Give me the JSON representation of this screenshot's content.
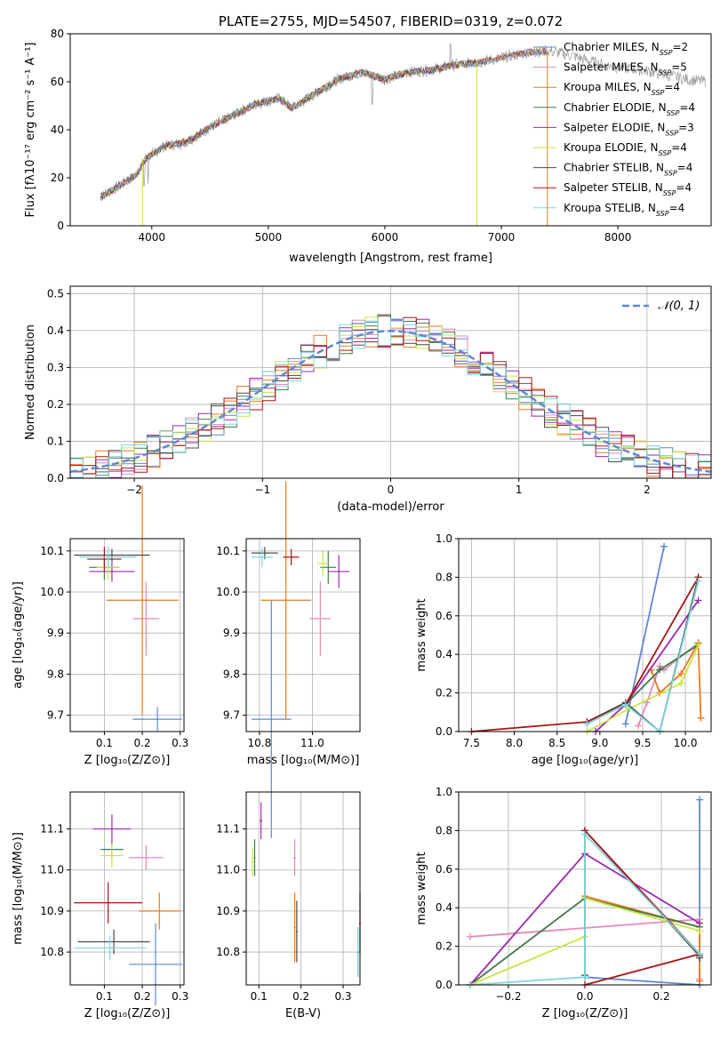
{
  "colors": {
    "Chabrier MILES": "#5f87d2",
    "Salpeter MILES": "#e589b8",
    "Kroupa MILES": "#ea7a20",
    "Chabrier ELODIE": "#3e7a4a",
    "Salpeter ELODIE": "#9a2aac",
    "Kroupa ELODIE": "#c8e642",
    "Chabrier STELIB": "#4a4a4a",
    "Salpeter STELIB": "#a81414",
    "Kroupa STELIB": "#7fd6dc"
  },
  "chart_data": [
    {
      "type": "line",
      "id": "spectrum",
      "title": "PLATE=2755, MJD=54507, FIBERID=0319, z=0.072",
      "xlabel": "wavelength [Angstrom, rest frame]",
      "ylabel": "Flux [fλ10⁻¹⁷ erg cm⁻² s⁻¹ A⁻¹]",
      "xlim": [
        3300,
        8800
      ],
      "ylim": [
        0,
        80
      ],
      "xticks": [
        "4000",
        "5000",
        "6000",
        "7000",
        "8000"
      ],
      "yticks": [
        "0",
        "20",
        "40",
        "60",
        "80"
      ],
      "legend_position": "right",
      "legend": [
        {
          "name": "Chabrier MILES",
          "label": "Chabrier MILES, N_SSP=2"
        },
        {
          "name": "Salpeter MILES",
          "label": "Salpeter MILES, N_SSP=5"
        },
        {
          "name": "Kroupa MILES",
          "label": "Kroupa MILES, N_SSP=4"
        },
        {
          "name": "Chabrier ELODIE",
          "label": "Chabrier ELODIE, N_SSP=4"
        },
        {
          "name": "Salpeter ELODIE",
          "label": "Salpeter ELODIE, N_SSP=3"
        },
        {
          "name": "Kroupa ELODIE",
          "label": "Kroupa ELODIE, N_SSP=4"
        },
        {
          "name": "Chabrier STELIB",
          "label": "Chabrier STELIB, N_SSP=4"
        },
        {
          "name": "Salpeter STELIB",
          "label": "Salpeter STELIB, N_SSP=4"
        },
        {
          "name": "Kroupa STELIB",
          "label": "Kroupa STELIB, N_SSP=4"
        }
      ],
      "continuum": {
        "x": [
          3560,
          3700,
          3860,
          3950,
          4100,
          4300,
          4500,
          4700,
          4900,
          5100,
          5200,
          5400,
          5600,
          5800,
          6000,
          6200,
          6400,
          6600,
          6800,
          7000,
          7200,
          7400,
          7600,
          7800,
          8000,
          8200,
          8400,
          8600,
          8750
        ],
        "flux": [
          12,
          16,
          21,
          28,
          33,
          35,
          41,
          46,
          51,
          53,
          49,
          55,
          61,
          64,
          61,
          64,
          65,
          67,
          68,
          70,
          72,
          73,
          71,
          68,
          66,
          65,
          63,
          61,
          60
        ]
      }
    },
    {
      "type": "histogram",
      "id": "residuals",
      "title": "",
      "xlabel": "(data-model)/error",
      "ylabel": "Normed distribution",
      "xlim": [
        -2.5,
        2.5
      ],
      "ylim": [
        0,
        0.52
      ],
      "xticks": [
        "−2",
        "−1",
        "0",
        "1",
        "2"
      ],
      "yticks": [
        "0.0",
        "0.1",
        "0.2",
        "0.3",
        "0.4",
        "0.5"
      ],
      "bin_width": 0.1,
      "legend_label": "𝒩(0, 1)",
      "reference": {
        "name": "normal",
        "mean": 0,
        "sigma": 1
      },
      "grid": true
    },
    {
      "type": "errorbar",
      "id": "age-vs-z",
      "xlabel": "Z [log₁₀(Z/Z⊙)]",
      "ylabel": "age  [log₁₀(age/yr)]",
      "xlim": [
        0.01,
        0.31
      ],
      "ylim": [
        9.66,
        10.13
      ],
      "xticks": [
        "0.1",
        "0.2",
        "0.3"
      ],
      "yticks": [
        "9.7",
        "9.8",
        "9.9",
        "10.0",
        "10.1"
      ],
      "points": [
        {
          "series": "Chabrier MILES",
          "x": 0.24,
          "xerr": 0.065,
          "y": 9.69,
          "yerr": 0.03
        },
        {
          "series": "Salpeter MILES",
          "x": 0.21,
          "xerr": 0.035,
          "y": 9.935,
          "yerr": 0.09
        },
        {
          "series": "Kroupa MILES",
          "x": 0.2,
          "xerr": 0.095,
          "y": 9.98,
          "yerr": 0.28
        },
        {
          "series": "Chabrier ELODIE",
          "x": 0.1,
          "xerr": 0.04,
          "y": 10.06,
          "yerr": 0.03
        },
        {
          "series": "Salpeter ELODIE",
          "x": 0.12,
          "xerr": 0.06,
          "y": 10.05,
          "yerr": 0.025
        },
        {
          "series": "Kroupa ELODIE",
          "x": 0.11,
          "xerr": 0.03,
          "y": 10.06,
          "yerr": 0.03
        },
        {
          "series": "Chabrier STELIB",
          "x": 0.12,
          "xerr": 0.1,
          "y": 10.09,
          "yerr": 0.015
        },
        {
          "series": "Salpeter STELIB",
          "x": 0.1,
          "xerr": 0.045,
          "y": 10.08,
          "yerr": 0.03
        },
        {
          "series": "Kroupa STELIB",
          "x": 0.11,
          "xerr": 0.075,
          "y": 10.085,
          "yerr": 0.025
        }
      ]
    },
    {
      "type": "errorbar",
      "id": "age-vs-mass",
      "xlabel": "mass [log₁₀(M/M⊙)]",
      "ylabel": "",
      "xlim": [
        10.75,
        11.18
      ],
      "ylim": [
        9.66,
        10.13
      ],
      "xticks": [
        "10.8",
        "11.0"
      ],
      "yticks": [
        "9.7",
        "9.8",
        "9.9",
        "10.0",
        "10.1"
      ],
      "points": [
        {
          "series": "Chabrier MILES",
          "x": 10.845,
          "xerr": 0.075,
          "y": 9.69,
          "yerr": 0.29
        },
        {
          "series": "Salpeter MILES",
          "x": 11.03,
          "xerr": 0.04,
          "y": 9.935,
          "yerr": 0.09
        },
        {
          "series": "Kroupa MILES",
          "x": 10.9,
          "xerr": 0.095,
          "y": 9.98,
          "yerr": 0.29
        },
        {
          "series": "Chabrier ELODIE",
          "x": 11.06,
          "xerr": 0.03,
          "y": 10.06,
          "yerr": 0.04
        },
        {
          "series": "Salpeter ELODIE",
          "x": 11.1,
          "xerr": 0.04,
          "y": 10.05,
          "yerr": 0.04
        },
        {
          "series": "Kroupa ELODIE",
          "x": 11.04,
          "xerr": 0.02,
          "y": 10.07,
          "yerr": 0.03
        },
        {
          "series": "Chabrier STELIB",
          "x": 10.82,
          "xerr": 0.05,
          "y": 10.095,
          "yerr": 0.015
        },
        {
          "series": "Salpeter STELIB",
          "x": 10.92,
          "xerr": 0.03,
          "y": 10.085,
          "yerr": 0.02
        },
        {
          "series": "Kroupa STELIB",
          "x": 10.81,
          "xerr": 0.04,
          "y": 10.085,
          "yerr": 0.025
        }
      ]
    },
    {
      "type": "line",
      "id": "weight-vs-age",
      "xlabel": "age  [log₁₀(age/yr)]",
      "ylabel": "mass weight",
      "xlim": [
        7.35,
        10.3
      ],
      "ylim": [
        0,
        1.0
      ],
      "xticks": [
        "7.5",
        "8.0",
        "8.5",
        "9.0",
        "9.5",
        "10.0"
      ],
      "yticks": [
        "0.0",
        "0.2",
        "0.4",
        "0.6",
        "0.8",
        "1.0"
      ],
      "grid": true,
      "series": [
        {
          "name": "Chabrier MILES",
          "x": [
            9.3,
            9.75
          ],
          "y": [
            0.04,
            0.96
          ]
        },
        {
          "name": "Salpeter MILES",
          "x": [
            9.45,
            9.55,
            9.7,
            9.75,
            10.15
          ],
          "y": [
            0.03,
            0.15,
            0.34,
            0.32,
            0.46
          ]
        },
        {
          "name": "Kroupa MILES",
          "x": [
            9.6,
            9.7,
            9.95,
            10.15,
            10.18
          ],
          "y": [
            0.32,
            0.2,
            0.3,
            0.46,
            0.07
          ]
        },
        {
          "name": "Chabrier ELODIE",
          "x": [
            8.85,
            9.3,
            9.7,
            10.15
          ],
          "y": [
            0.05,
            0.14,
            0.32,
            0.45
          ]
        },
        {
          "name": "Salpeter ELODIE",
          "x": [
            8.95,
            9.3,
            10.15
          ],
          "y": [
            0.0,
            0.14,
            0.68
          ]
        },
        {
          "name": "Kroupa ELODIE",
          "x": [
            8.85,
            9.35,
            9.95,
            10.15
          ],
          "y": [
            0.0,
            0.12,
            0.25,
            0.45
          ]
        },
        {
          "name": "Chabrier STELIB",
          "x": [
            8.85,
            9.3,
            9.7,
            10.15
          ],
          "y": [
            0.05,
            0.15,
            0.0,
            0.8
          ]
        },
        {
          "name": "Salpeter STELIB",
          "x": [
            7.5,
            8.85,
            9.3,
            10.15
          ],
          "y": [
            0.0,
            0.05,
            0.14,
            0.8
          ]
        },
        {
          "name": "Kroupa STELIB",
          "x": [
            8.85,
            9.3,
            9.7,
            10.15
          ],
          "y": [
            0.04,
            0.14,
            0.0,
            0.78
          ]
        }
      ]
    },
    {
      "type": "errorbar",
      "id": "mass-vs-z",
      "xlabel": "Z [log₁₀(Z/Z⊙)]",
      "ylabel": "mass [log₁₀(M/M⊙)]",
      "xlim": [
        0.01,
        0.31
      ],
      "ylim": [
        10.72,
        11.19
      ],
      "xticks": [
        "0.1",
        "0.2",
        "0.3"
      ],
      "yticks": [
        "10.8",
        "10.9",
        "11.0",
        "11.1"
      ],
      "points": [
        {
          "series": "Chabrier MILES",
          "x": 0.235,
          "xerr": 0.07,
          "y": 10.77,
          "yerr": 0.1
        },
        {
          "series": "Salpeter MILES",
          "x": 0.21,
          "xerr": 0.045,
          "y": 11.03,
          "yerr": 0.03
        },
        {
          "series": "Kroupa MILES",
          "x": 0.245,
          "xerr": 0.055,
          "y": 10.9,
          "yerr": 0.045
        },
        {
          "series": "Chabrier ELODIE",
          "x": 0.12,
          "xerr": 0.03,
          "y": 11.05,
          "yerr": 0.02
        },
        {
          "series": "Salpeter ELODIE",
          "x": 0.12,
          "xerr": 0.05,
          "y": 11.1,
          "yerr": 0.035
        },
        {
          "series": "Kroupa ELODIE",
          "x": 0.12,
          "xerr": 0.03,
          "y": 11.035,
          "yerr": 0.03
        },
        {
          "series": "Chabrier STELIB",
          "x": 0.125,
          "xerr": 0.095,
          "y": 10.825,
          "yerr": 0.03
        },
        {
          "series": "Salpeter STELIB",
          "x": 0.11,
          "xerr": 0.09,
          "y": 10.92,
          "yerr": 0.05
        },
        {
          "series": "Kroupa STELIB",
          "x": 0.115,
          "xerr": 0.095,
          "y": 10.81,
          "yerr": 0.03
        }
      ]
    },
    {
      "type": "errorbar",
      "id": "mass-vs-ebv",
      "xlabel": "E(B-V)",
      "ylabel": "",
      "xlim": [
        0.07,
        0.34
      ],
      "ylim": [
        10.72,
        11.19
      ],
      "xticks": [
        "0.1",
        "0.2",
        "0.3"
      ],
      "yticks": [
        "10.8",
        "10.9",
        "11.0",
        "11.1"
      ],
      "points": [
        {
          "series": "Chabrier MILES",
          "x": 0.335,
          "xerr": 0.003,
          "y": 10.8,
          "yerr": 0.06
        },
        {
          "series": "Salpeter MILES",
          "x": 0.185,
          "xerr": 0.003,
          "y": 11.03,
          "yerr": 0.045
        },
        {
          "series": "Kroupa MILES",
          "x": 0.185,
          "xerr": 0.002,
          "y": 10.86,
          "yerr": 0.085
        },
        {
          "series": "Chabrier ELODIE",
          "x": 0.09,
          "xerr": 0.002,
          "y": 11.03,
          "yerr": 0.045
        },
        {
          "series": "Salpeter ELODIE",
          "x": 0.105,
          "xerr": 0.003,
          "y": 11.12,
          "yerr": 0.045
        },
        {
          "series": "Kroupa ELODIE",
          "x": 0.085,
          "xerr": 0.002,
          "y": 11.02,
          "yerr": 0.035
        },
        {
          "series": "Chabrier STELIB",
          "x": 0.19,
          "xerr": 0.002,
          "y": 10.85,
          "yerr": 0.075
        },
        {
          "series": "Salpeter STELIB",
          "x": 0.34,
          "xerr": 0.002,
          "y": 10.87,
          "yerr": 0.075
        },
        {
          "series": "Kroupa STELIB",
          "x": 0.335,
          "xerr": 0.002,
          "y": 10.8,
          "yerr": 0.06
        }
      ]
    },
    {
      "type": "line",
      "id": "weight-vs-z",
      "xlabel": "Z [log₁₀(Z/Z⊙)]",
      "ylabel": "mass weight",
      "xlim": [
        -0.33,
        0.33
      ],
      "ylim": [
        0,
        1.0
      ],
      "xticks": [
        "−0.2",
        "0.0",
        "0.2"
      ],
      "yticks": [
        "0.0",
        "0.2",
        "0.4",
        "0.6",
        "0.8",
        "1.0"
      ],
      "grid": true,
      "series": [
        {
          "name": "Chabrier MILES",
          "x": [
            0.0,
            0.3,
            0.3
          ],
          "y": [
            0.04,
            0.0,
            0.96
          ]
        },
        {
          "name": "Salpeter MILES",
          "x": [
            -0.3,
            0.3,
            0.3
          ],
          "y": [
            0.25,
            0.34,
            0.03
          ]
        },
        {
          "name": "Kroupa MILES",
          "x": [
            0.0,
            0.3,
            0.3
          ],
          "y": [
            0.46,
            0.3,
            0.02
          ]
        },
        {
          "name": "Chabrier ELODIE",
          "x": [
            -0.3,
            0.0,
            0.3
          ],
          "y": [
            0.0,
            0.45,
            0.3
          ]
        },
        {
          "name": "Salpeter ELODIE",
          "x": [
            -0.3,
            0.0,
            0.3
          ],
          "y": [
            0.0,
            0.68,
            0.32
          ]
        },
        {
          "name": "Kroupa ELODIE",
          "x": [
            -0.3,
            0.0,
            0.0,
            0.3
          ],
          "y": [
            0.0,
            0.25,
            0.45,
            0.28
          ]
        },
        {
          "name": "Chabrier STELIB",
          "x": [
            0.0,
            0.0,
            0.3,
            0.3
          ],
          "y": [
            0.05,
            0.8,
            0.15,
            0.14
          ]
        },
        {
          "name": "Salpeter STELIB",
          "x": [
            0.0,
            0.3,
            0.0
          ],
          "y": [
            0.0,
            0.16,
            0.8
          ]
        },
        {
          "name": "Kroupa STELIB",
          "x": [
            -0.3,
            0.0,
            0.0,
            0.3
          ],
          "y": [
            0.0,
            0.04,
            0.78,
            0.16
          ]
        }
      ]
    }
  ]
}
